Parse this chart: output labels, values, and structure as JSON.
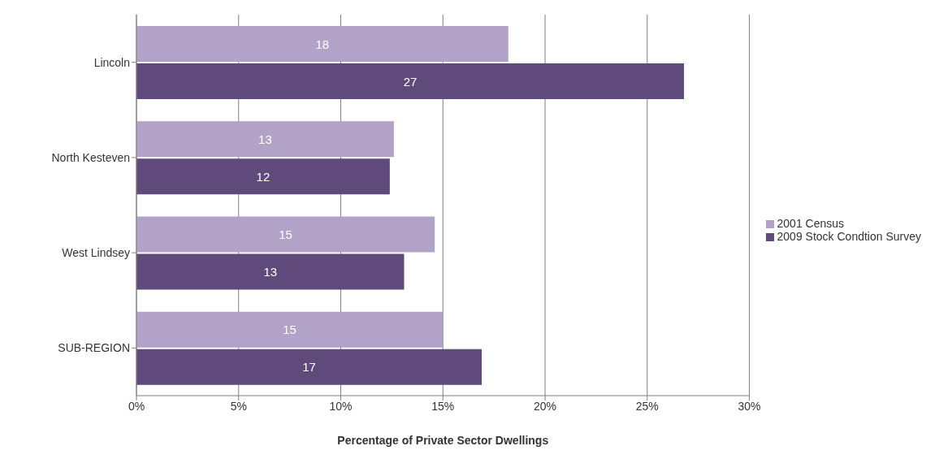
{
  "chart_data": {
    "type": "bar",
    "orientation": "horizontal",
    "xlabel": "Percentage of Private Sector Dwellings",
    "categories": [
      "Lincoln",
      "North Kesteven",
      "West Lindsey",
      "SUB-REGION"
    ],
    "series": [
      {
        "name": "2001 Census",
        "color": "#b3a2c7",
        "values": [
          18.2,
          12.6,
          14.6,
          15.0
        ],
        "value_labels": [
          "18",
          "13",
          "15",
          "15"
        ]
      },
      {
        "name": "2009 Stock Condtion Survey",
        "color": "#604a7b",
        "values": [
          26.8,
          12.4,
          13.1,
          16.9
        ],
        "value_labels": [
          "27",
          "12",
          "13",
          "17"
        ]
      }
    ],
    "xlim": [
      0,
      30
    ],
    "xticks": [
      {
        "value": 0,
        "label": "0%"
      },
      {
        "value": 5,
        "label": "5%"
      },
      {
        "value": 10,
        "label": "10%"
      },
      {
        "value": 15,
        "label": "15%"
      },
      {
        "value": 20,
        "label": "20%"
      },
      {
        "value": 25,
        "label": "25%"
      },
      {
        "value": 30,
        "label": "30%"
      }
    ],
    "grid": "x",
    "legend": "right"
  }
}
